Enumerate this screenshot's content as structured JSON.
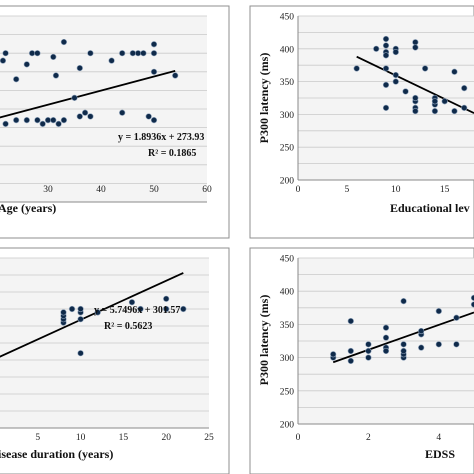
{
  "chart_data": [
    {
      "type": "scatter",
      "xlabel": "Age (years)",
      "ylabel": "",
      "xlim": [
        20,
        60
      ],
      "ylim": [
        200,
        450
      ],
      "xticks": [
        "30",
        "40",
        "50",
        "60"
      ],
      "yticks": [],
      "grid": true,
      "trendline": {
        "slope": 1.8936,
        "intercept": 273.93,
        "equation": "y = 1.8936x + 273.93",
        "r2": "R² = 0.1865"
      },
      "x": [
        20,
        22,
        21.5,
        24,
        26,
        27,
        28,
        33,
        31,
        31.5,
        36,
        38,
        42,
        44,
        46,
        47,
        48,
        50,
        50,
        50,
        54,
        22,
        24,
        26,
        28,
        29,
        30,
        31,
        32,
        33,
        36,
        37,
        38,
        44,
        49,
        50,
        35
      ],
      "y": [
        395,
        400,
        390,
        365,
        385,
        400,
        400,
        415,
        395,
        370,
        380,
        400,
        390,
        400,
        400,
        400,
        400,
        412,
        400,
        375,
        370,
        305,
        310,
        310,
        310,
        305,
        310,
        310,
        305,
        310,
        315,
        320,
        315,
        320,
        315,
        310,
        340
      ]
    },
    {
      "type": "scatter",
      "xlabel": "Educational lev",
      "ylabel": "P300 latency (ms)",
      "xlim": [
        0,
        18
      ],
      "ylim": [
        200,
        450
      ],
      "xticks": [
        "0",
        "5",
        "10",
        "15"
      ],
      "yticks": [
        "200",
        "250",
        "300",
        "350",
        "400",
        "450"
      ],
      "grid": true,
      "trendline": {
        "x0": 6,
        "y0": 388,
        "x1": 18,
        "y1": 302
      },
      "x": [
        6,
        8,
        9,
        9,
        9,
        9,
        10,
        10,
        12,
        12,
        13,
        9,
        9,
        10,
        11,
        12,
        12,
        12,
        14,
        14,
        14,
        15,
        16,
        17,
        9,
        10,
        12,
        14,
        16,
        17
      ],
      "y": [
        370,
        400,
        415,
        405,
        395,
        370,
        400,
        395,
        410,
        402,
        370,
        345,
        310,
        350,
        335,
        320,
        310,
        305,
        325,
        315,
        305,
        320,
        365,
        310,
        390,
        360,
        325,
        320,
        305,
        340
      ]
    },
    {
      "type": "scatter",
      "xlabel": "isease duration (years)",
      "ylabel": "",
      "xlim": [
        0,
        25
      ],
      "ylim": [
        200,
        450
      ],
      "xticks": [
        "5",
        "10",
        "15",
        "20",
        "25"
      ],
      "yticks": [],
      "grid": true,
      "trendline": {
        "slope": 5.7496,
        "intercept": 301.57,
        "equation": "y = 5.7496x + 301.57",
        "r2": "R² = 0.5623"
      },
      "x": [
        8,
        8,
        8,
        8,
        9,
        10,
        10,
        10,
        12,
        16,
        17,
        20,
        20,
        22,
        10
      ],
      "y": [
        355,
        360,
        365,
        370,
        375,
        360,
        370,
        375,
        370,
        385,
        375,
        390,
        375,
        375,
        310
      ]
    },
    {
      "type": "scatter",
      "xlabel": "EDSS",
      "ylabel": "P300 latency (ms)",
      "xlim": [
        0,
        5
      ],
      "ylim": [
        200,
        450
      ],
      "xticks": [
        "0",
        "2",
        "4"
      ],
      "yticks": [
        "200",
        "250",
        "300",
        "350",
        "400",
        "450"
      ],
      "grid": true,
      "trendline": {
        "x0": 1,
        "y0": 293,
        "x1": 5,
        "y1": 368
      },
      "x": [
        1,
        1,
        1.5,
        1.5,
        1.5,
        2,
        2,
        2,
        2.5,
        2.5,
        2.5,
        3,
        3,
        3,
        3,
        3.5,
        3.5,
        3.5,
        4,
        4,
        4.5,
        4.5,
        5,
        5,
        3,
        2.5
      ],
      "y": [
        300,
        305,
        295,
        310,
        355,
        300,
        310,
        320,
        315,
        345,
        330,
        300,
        305,
        310,
        385,
        315,
        335,
        340,
        320,
        370,
        320,
        360,
        380,
        390,
        320,
        310
      ]
    }
  ]
}
